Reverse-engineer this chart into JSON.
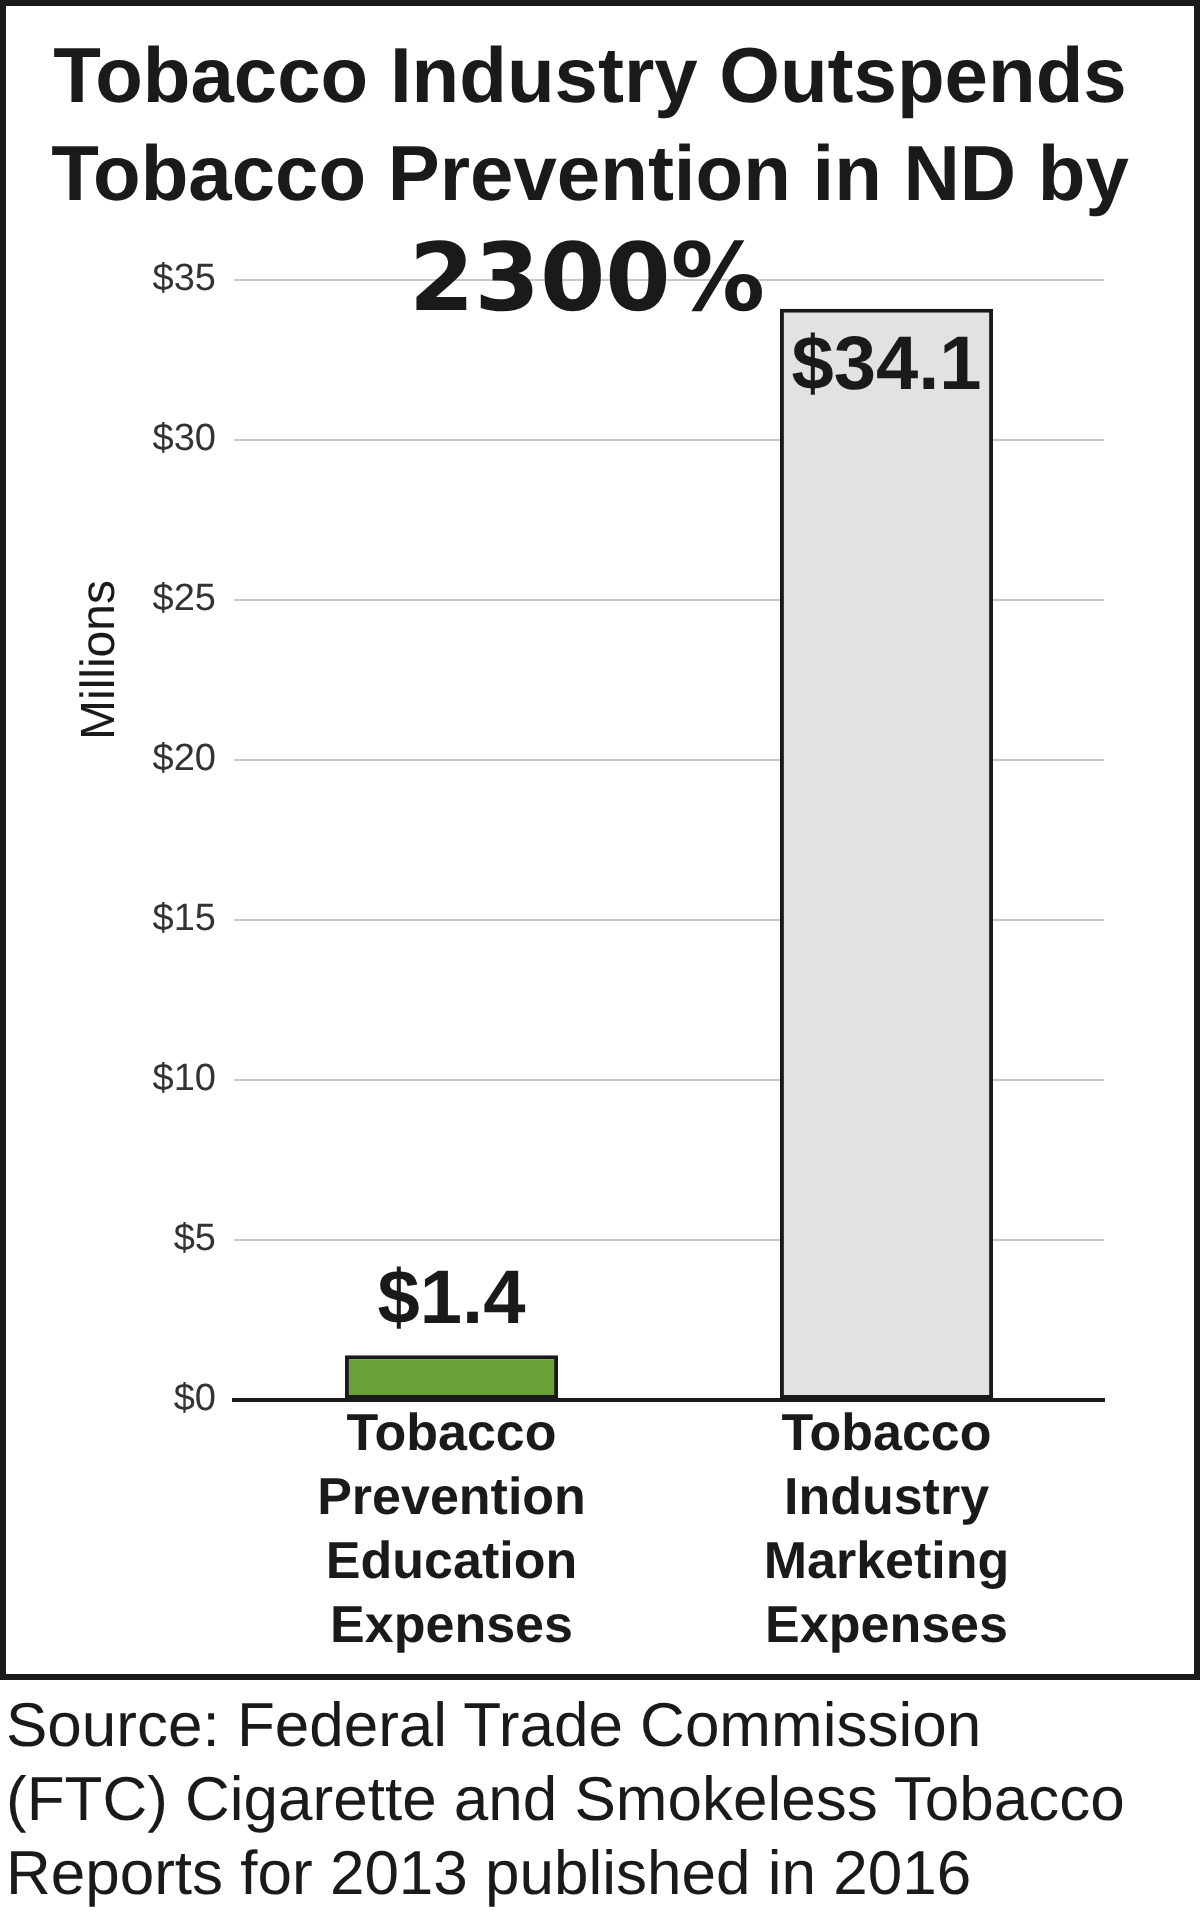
{
  "chart_data": {
    "type": "bar",
    "title": "Tobacco Industry Outspends Tobacco Prevention in ND by",
    "subtitle": "2300%",
    "ylabel": "Millions",
    "categories": [
      "Tobacco Prevention Education Expenses",
      "Tobacco Industry Marketing Expenses"
    ],
    "values": [
      1.4,
      34.1
    ],
    "colors": [
      "#6a9f3a",
      "#e2e2e2"
    ],
    "value_labels": [
      "$1.4",
      "$34.1"
    ],
    "ylim": [
      0,
      35
    ],
    "yticks": [
      {
        "value": 0,
        "label": "$0"
      },
      {
        "value": 5,
        "label": "$5"
      },
      {
        "value": 10,
        "label": "$10"
      },
      {
        "value": 15,
        "label": "$15"
      },
      {
        "value": 20,
        "label": "$20"
      },
      {
        "value": 25,
        "label": "$25"
      },
      {
        "value": 30,
        "label": "$30"
      },
      {
        "value": 35,
        "label": "$35"
      }
    ],
    "grid": "y",
    "legend": false,
    "annotations": [
      "Source: Federal Trade Commission (FTC) Cigarette and Smokeless Tobacco Reports for 2013 published in 2016"
    ]
  }
}
